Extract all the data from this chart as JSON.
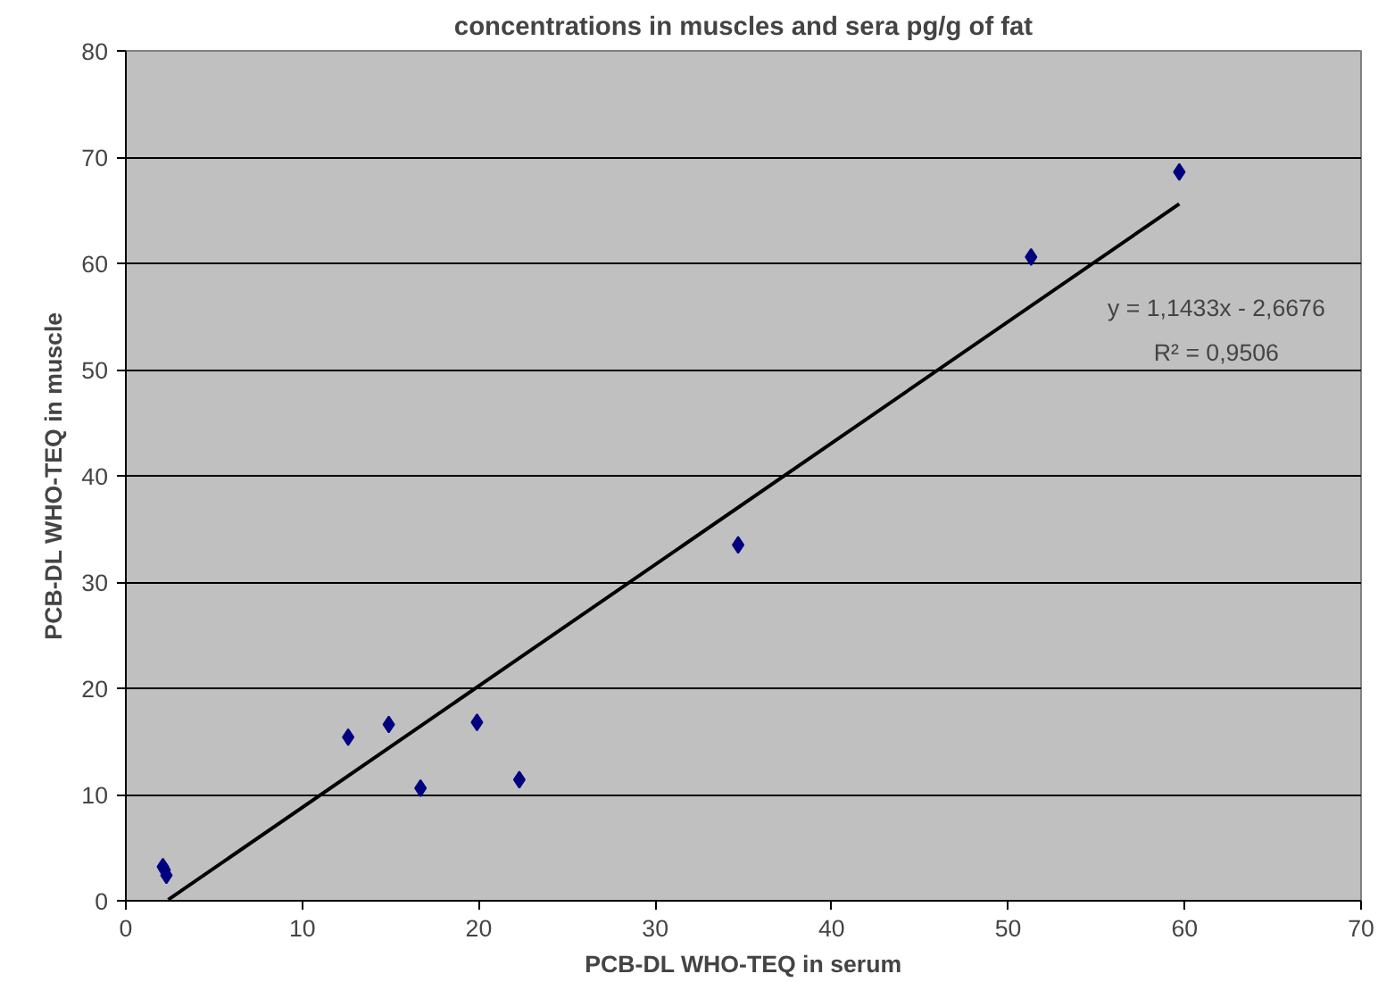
{
  "chart_data": {
    "type": "scatter",
    "title": "concentrations in muscles and sera pg/g of fat",
    "xlabel": "PCB-DL WHO-TEQ in serum",
    "ylabel": "PCB-DL WHO-TEQ in muscle",
    "series": [
      {
        "color": "#000080",
        "marker": "diamond",
        "x": [
          2.1,
          2.2,
          2.3,
          12.6,
          14.9,
          16.7,
          19.9,
          22.3,
          34.7,
          51.3,
          59.7
        ],
        "values": [
          3.2,
          2.9,
          2.4,
          15.4,
          16.6,
          10.6,
          16.8,
          11.4,
          33.5,
          60.6,
          68.6
        ]
      },
      {
        "type": "line",
        "color": "#000000",
        "marker": "none",
        "line_style": "solid",
        "x": [
          2.4,
          59.7
        ],
        "values": [
          0.1,
          65.6
        ]
      }
    ],
    "annotations": [
      "y = 1,1433x - 2,6676",
      "R² = 0,9506"
    ],
    "xlim": [
      0,
      70
    ],
    "xticks": [
      0,
      10,
      20,
      30,
      40,
      50,
      60,
      70
    ],
    "ylim": [
      0,
      80
    ],
    "yticks": [
      0,
      10,
      20,
      30,
      40,
      50,
      60,
      70,
      80
    ],
    "grid": "y"
  }
}
